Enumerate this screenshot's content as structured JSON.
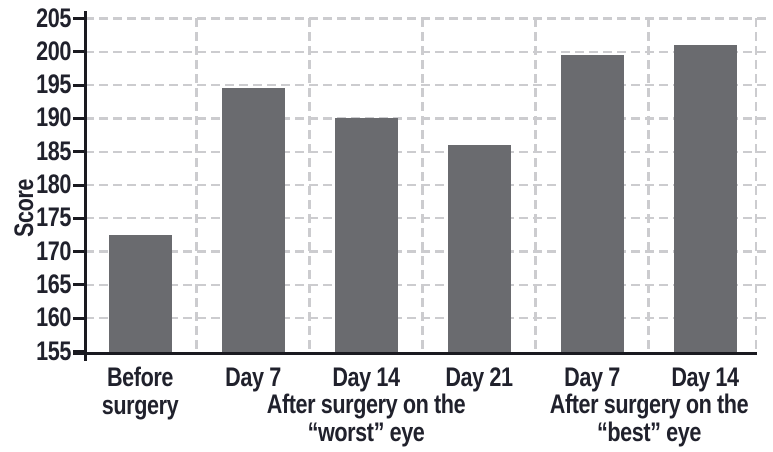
{
  "chart_data": {
    "type": "bar",
    "title": "",
    "xlabel": "",
    "ylabel": "Score",
    "ylim": [
      155,
      205
    ],
    "y_tick_step": 5,
    "y_ticks": [
      155,
      160,
      165,
      170,
      175,
      180,
      185,
      190,
      195,
      200,
      205
    ],
    "categories": [
      "Before\nsurgery",
      "Day 7",
      "Day 14",
      "Day 21",
      "Day 7",
      "Day 14"
    ],
    "values": [
      172.5,
      194.5,
      190,
      186,
      199.5,
      201
    ],
    "group_labels": [
      {
        "lines": [
          "After surgery on the",
          "“worst” eye"
        ],
        "category_span": [
          1,
          3
        ]
      },
      {
        "lines": [
          "After surgery on the",
          "“best” eye"
        ],
        "category_span": [
          4,
          5
        ]
      }
    ],
    "legend": false,
    "grid": true,
    "grid_style": "dashed",
    "colors": {
      "bar": "#6a6b6f",
      "gridline": "#cccccf",
      "axis": "#1a1a20",
      "text": "#20212c",
      "background": "#ffffff"
    }
  }
}
